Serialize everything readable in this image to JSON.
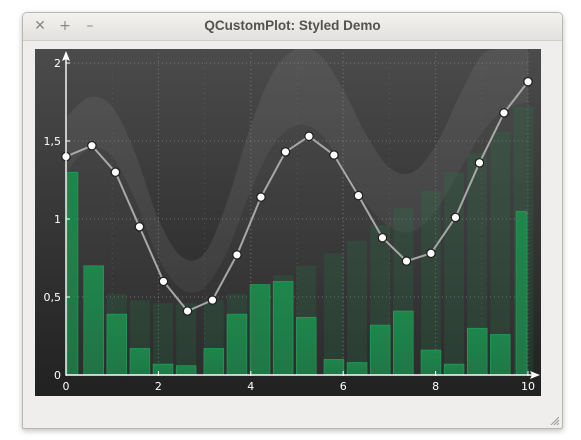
{
  "window": {
    "title": "QCustomPlot: Styled Demo",
    "close_glyph": "✕",
    "maximize_glyph": "+",
    "minimize_glyph": "–"
  },
  "colors": {
    "background_top": "#4b4b4b",
    "background_bottom": "#212121",
    "line": "#a8a8a8",
    "bars": "#1c8a4c",
    "fill": "#7a7a7a",
    "axis": "#ffffff"
  },
  "chart_data": {
    "type": "bar",
    "xlim": [
      0,
      10
    ],
    "ylim": [
      0,
      2
    ],
    "xticks": [
      0,
      2,
      4,
      6,
      8,
      10
    ],
    "xtick_labels": [
      "0",
      "2",
      "4",
      "6",
      "8",
      "10"
    ],
    "yticks": [
      0,
      0.5,
      1,
      1.5,
      2
    ],
    "ytick_labels": [
      "0",
      "0,5",
      "1",
      "1,5",
      "2"
    ],
    "grid": true,
    "series": [
      {
        "kind": "bar",
        "color": "#1c8a4c",
        "x": [
          0.1,
          0.6,
          1.1,
          1.6,
          2.1,
          2.6,
          3.2,
          3.7,
          4.2,
          4.7,
          5.2,
          5.8,
          6.3,
          6.8,
          7.3,
          7.9,
          8.4,
          8.9,
          9.4,
          9.9
        ],
        "values": [
          1.3,
          0.7,
          0.39,
          0.17,
          0.07,
          0.06,
          0.17,
          0.39,
          0.58,
          0.6,
          0.37,
          0.1,
          0.08,
          0.32,
          0.41,
          0.16,
          0.07,
          0.3,
          0.26,
          1.05
        ]
      },
      {
        "kind": "bar",
        "style": "faded",
        "color": "#1c8a4c",
        "x": [
          1.1,
          1.6,
          2.1,
          2.6,
          3.2,
          3.7,
          4.2,
          4.7,
          5.2,
          5.8,
          6.3,
          6.8,
          7.3,
          7.9,
          8.4,
          8.9,
          9.4,
          9.9
        ],
        "values": [
          0.52,
          0.48,
          0.46,
          0.46,
          0.48,
          0.52,
          0.58,
          0.64,
          0.7,
          0.78,
          0.86,
          0.96,
          1.07,
          1.18,
          1.3,
          1.42,
          1.56,
          1.72
        ]
      },
      {
        "kind": "line-scatter",
        "color": "#a8a8a8",
        "x": [
          0,
          0.56,
          1.07,
          1.59,
          2.11,
          2.63,
          3.17,
          3.7,
          4.22,
          4.75,
          5.26,
          5.8,
          6.33,
          6.85,
          7.37,
          7.9,
          8.43,
          8.95,
          9.48,
          10.0
        ],
        "y": [
          1.4,
          1.47,
          1.3,
          0.95,
          0.6,
          0.41,
          0.48,
          0.77,
          1.14,
          1.43,
          1.53,
          1.41,
          1.15,
          0.88,
          0.73,
          0.78,
          1.01,
          1.36,
          1.68,
          1.88
        ]
      },
      {
        "kind": "area-band",
        "color": "#7a7a7a",
        "x": [
          0,
          0.5,
          1,
          1.5,
          2,
          2.5,
          3,
          3.5,
          4,
          4.5,
          5,
          5.5,
          6,
          6.5,
          7,
          7.5,
          8,
          8.5,
          9,
          9.5,
          10
        ],
        "upper": [
          1.65,
          1.78,
          1.72,
          1.42,
          1.0,
          0.76,
          0.78,
          1.12,
          1.6,
          1.95,
          2.1,
          2.05,
          1.83,
          1.54,
          1.33,
          1.3,
          1.47,
          1.78,
          2.05,
          2.1,
          2.1
        ],
        "lower": [
          1.3,
          1.45,
          1.4,
          1.12,
          0.75,
          0.55,
          0.56,
          0.8,
          1.18,
          1.48,
          1.6,
          1.55,
          1.33,
          1.1,
          0.95,
          0.92,
          1.05,
          1.3,
          1.55,
          1.7,
          1.75
        ]
      }
    ]
  }
}
